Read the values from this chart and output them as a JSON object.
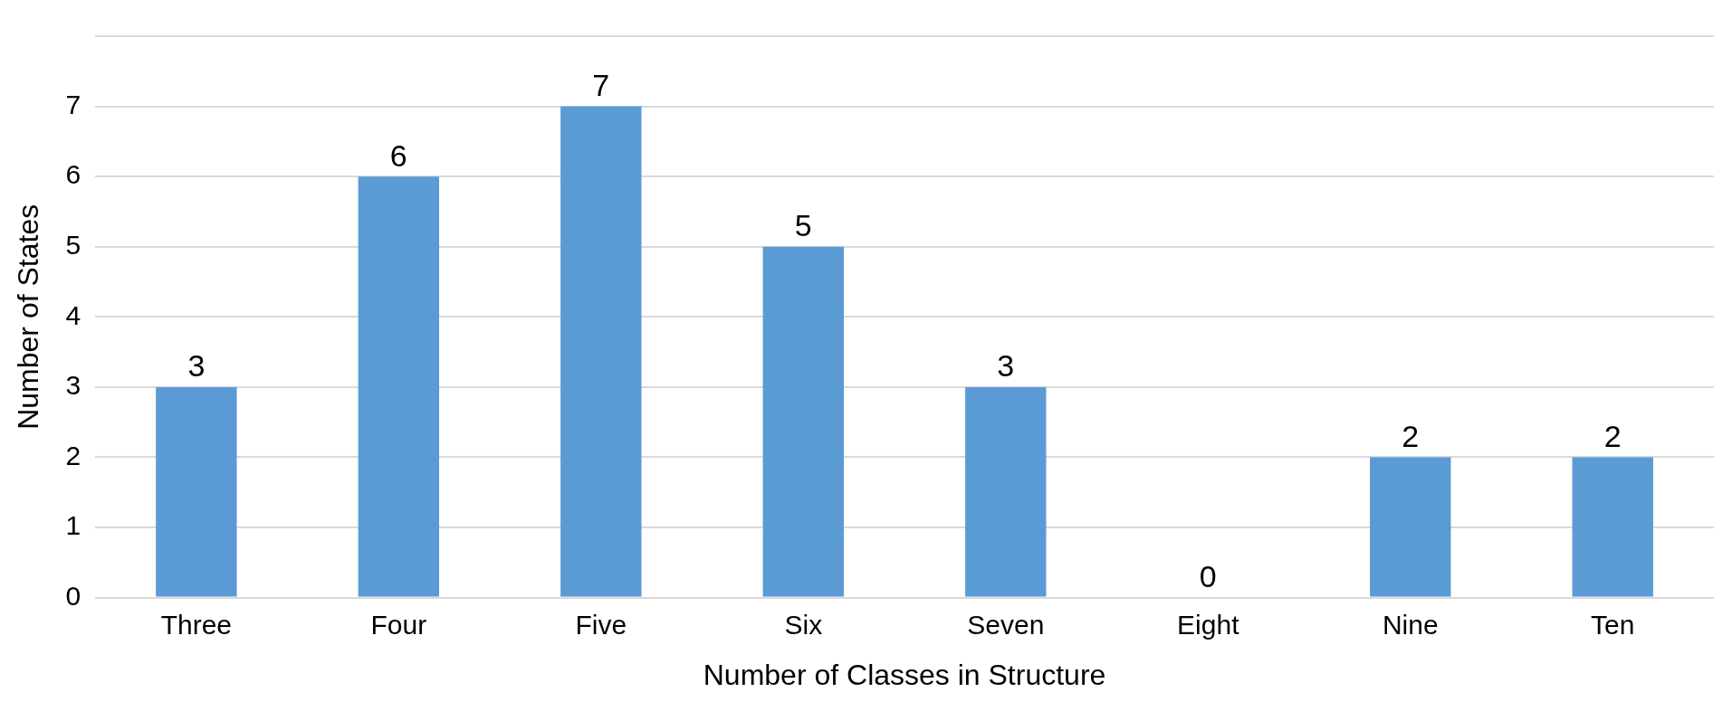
{
  "chart_data": {
    "type": "bar",
    "xlabel": "Number of Classes in Structure",
    "ylabel": "Number of States",
    "categories": [
      "Three",
      "Four",
      "Five",
      "Six",
      "Seven",
      "Eight",
      "Nine",
      "Ten"
    ],
    "values": [
      3,
      6,
      7,
      5,
      3,
      0,
      2,
      2
    ],
    "color": "#5b9bd5",
    "ylim": [
      0,
      8
    ],
    "yticks": [
      0,
      1,
      2,
      3,
      4,
      5,
      6,
      7,
      {
        "value": 8,
        "label": null
      }
    ],
    "grid": "y",
    "data_labels": true,
    "legend": false
  }
}
